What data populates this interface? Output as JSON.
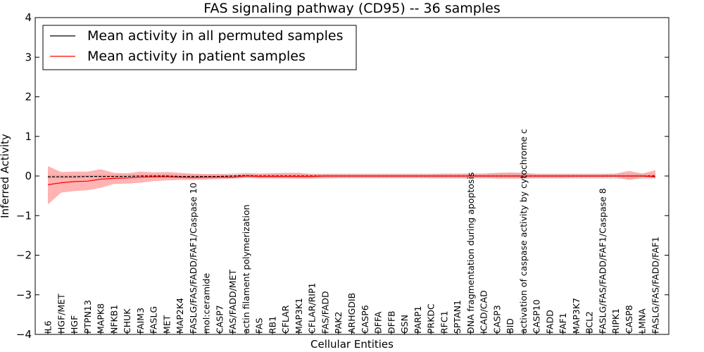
{
  "chart_data": {
    "type": "line",
    "title": "FAS signaling pathway (CD95) -- 36 samples",
    "xlabel": "Cellular Entities",
    "ylabel": "Inferred Activity",
    "ylim": [
      -4,
      4
    ],
    "yticks": [
      4,
      3,
      2,
      1,
      0,
      -1,
      -2,
      -3,
      -4
    ],
    "ytick_labels": [
      "4",
      "3",
      "2",
      "1",
      "0",
      "−1",
      "−2",
      "−3",
      "−4"
    ],
    "grid": false,
    "legend_position": "upper-left",
    "categories": [
      "IL6",
      "HGF/MET",
      "HGF",
      "PTPN13",
      "MAPK8",
      "NFKB1",
      "CHUK",
      "FAIM3",
      "FASLG",
      "MET",
      "MAP2K4",
      "FASLG/FAS/FADD/FAF1/Caspase 10",
      "mol:ceramide",
      "CASP7",
      "FAS/FADD/MET",
      "actin filament polymerization",
      "FAS",
      "RB1",
      "CFLAR",
      "MAP3K1",
      "CFLAR/RIP1",
      "FAS/FADD",
      "PAK2",
      "ARHGDIB",
      "CASP6",
      "DFFA",
      "DFFB",
      "GSN",
      "PARP1",
      "PRKDC",
      "RFC1",
      "SPTAN1",
      "DNA fragmentation during apoptosis",
      "ICAD/CAD",
      "CASP3",
      "BID",
      "activation of caspase activity by cytochrome c",
      "CASP10",
      "FADD",
      "FAF1",
      "MAP3K7",
      "BCL2",
      "FASLG/FAS/FADD/FAF1/Caspase 8",
      "RIPK1",
      "CASP8",
      "LMNA",
      "FASLG/FAS/FADD/FAF1"
    ],
    "series": [
      {
        "name": "Mean activity in all permuted samples",
        "color": "#000000",
        "band_color": "#c8c8c8",
        "values": [
          -0.02,
          -0.02,
          -0.02,
          -0.01,
          -0.01,
          -0.01,
          -0.01,
          0.0,
          0.0,
          0.0,
          -0.01,
          -0.01,
          -0.01,
          -0.01,
          0.0,
          0.01,
          0.0,
          0.0,
          0.0,
          0.0,
          0.0,
          0.0,
          0.0,
          0.0,
          0.0,
          0.0,
          0.0,
          0.0,
          0.0,
          0.0,
          0.0,
          0.0,
          0.0,
          0.0,
          0.0,
          0.0,
          0.0,
          0.0,
          0.0,
          0.0,
          0.0,
          0.0,
          0.0,
          0.0,
          0.0,
          0.0,
          0.0
        ],
        "lower": [
          -0.07,
          -0.06,
          -0.06,
          -0.05,
          -0.05,
          -0.05,
          -0.05,
          -0.04,
          -0.05,
          -0.05,
          -0.06,
          -0.06,
          -0.06,
          -0.05,
          -0.05,
          -0.04,
          -0.05,
          -0.05,
          -0.06,
          -0.07,
          -0.07,
          -0.07,
          -0.06,
          -0.06,
          -0.06,
          -0.06,
          -0.06,
          -0.06,
          -0.06,
          -0.07,
          -0.07,
          -0.07,
          -0.07,
          -0.07,
          -0.07,
          -0.07,
          -0.07,
          -0.07,
          -0.07,
          -0.07,
          -0.07,
          -0.07,
          -0.07,
          -0.08,
          -0.08,
          -0.08,
          -0.08
        ],
        "upper": [
          0.03,
          0.03,
          0.03,
          0.03,
          0.04,
          0.04,
          0.04,
          0.04,
          0.05,
          0.05,
          0.04,
          0.04,
          0.05,
          0.05,
          0.07,
          0.08,
          0.06,
          0.06,
          0.06,
          0.06,
          0.06,
          0.06,
          0.06,
          0.06,
          0.06,
          0.06,
          0.06,
          0.06,
          0.06,
          0.06,
          0.06,
          0.06,
          0.06,
          0.06,
          0.07,
          0.07,
          0.07,
          0.06,
          0.06,
          0.06,
          0.06,
          0.06,
          0.06,
          0.06,
          0.06,
          0.06,
          0.06
        ]
      },
      {
        "name": "Mean activity in patient samples",
        "color": "#ff0000",
        "band_color": "#ff8080",
        "values": [
          -0.22,
          -0.17,
          -0.14,
          -0.13,
          -0.08,
          -0.06,
          -0.05,
          -0.03,
          -0.02,
          -0.02,
          -0.03,
          -0.04,
          -0.03,
          -0.03,
          -0.03,
          0.0,
          -0.01,
          -0.01,
          -0.01,
          -0.01,
          -0.01,
          0.0,
          0.0,
          0.0,
          0.0,
          0.0,
          0.0,
          0.0,
          0.0,
          0.0,
          0.0,
          0.0,
          0.0,
          0.0,
          0.0,
          0.0,
          0.0,
          0.0,
          0.0,
          0.0,
          0.0,
          0.0,
          0.0,
          0.0,
          0.0,
          0.0,
          -0.02
        ],
        "lower": [
          -0.72,
          -0.42,
          -0.38,
          -0.36,
          -0.3,
          -0.2,
          -0.19,
          -0.17,
          -0.13,
          -0.11,
          -0.1,
          -0.1,
          -0.09,
          -0.08,
          -0.07,
          -0.05,
          -0.06,
          -0.06,
          -0.06,
          -0.06,
          -0.06,
          -0.05,
          -0.05,
          -0.05,
          -0.05,
          -0.05,
          -0.05,
          -0.05,
          -0.05,
          -0.05,
          -0.05,
          -0.05,
          -0.05,
          -0.05,
          -0.06,
          -0.06,
          -0.06,
          -0.05,
          -0.05,
          -0.05,
          -0.04,
          -0.04,
          -0.04,
          -0.03,
          -0.1,
          -0.04,
          -0.05
        ],
        "upper": [
          0.25,
          0.1,
          0.11,
          0.11,
          0.17,
          0.08,
          0.07,
          0.11,
          0.09,
          0.1,
          0.08,
          0.06,
          0.05,
          0.05,
          0.03,
          0.06,
          0.06,
          0.07,
          0.08,
          0.08,
          0.05,
          0.05,
          0.05,
          0.05,
          0.05,
          0.05,
          0.05,
          0.05,
          0.05,
          0.05,
          0.06,
          0.06,
          0.06,
          0.06,
          0.08,
          0.09,
          0.08,
          0.05,
          0.05,
          0.05,
          0.05,
          0.05,
          0.05,
          0.06,
          0.13,
          0.06,
          0.15
        ]
      }
    ]
  }
}
